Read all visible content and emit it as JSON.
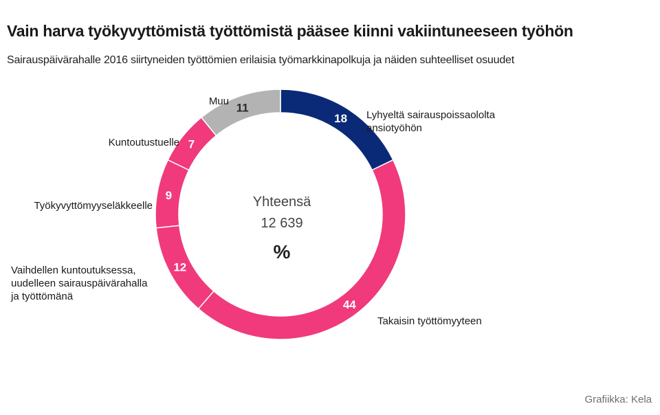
{
  "chart_data": {
    "type": "pie",
    "title": "Vain harva työkyvyttömistä työttömistä pääsee kiinni vakiintuneeseen työhön",
    "subtitle": "Sairauspäivärahalle 2016 siirtyneiden työttömien erilaisia työmarkkinapolkuja ja näiden suhteelliset osuudet",
    "center": {
      "label": "Yhteensä",
      "total": "12 639",
      "unit": "%"
    },
    "slices": [
      {
        "name": "Lyhyeltä sairauspoissaololta ansiotyöhön",
        "lines": [
          "Lyhyeltä sairauspoissaololta",
          "ansiotyöhön"
        ],
        "value": 18,
        "color": "#0a2a78"
      },
      {
        "name": "Takaisin työttömyyteen",
        "lines": [
          "Takaisin työttömyyteen"
        ],
        "value": 44,
        "color": "#f03a7c"
      },
      {
        "name": "Vaihdellen kuntoutuksessa, uudelleen sairauspäivärahalla ja työttömänä",
        "lines": [
          "Vaihdellen kuntoutuksessa,",
          "uudelleen sairauspäivärahalla",
          "ja työttömänä"
        ],
        "value": 12,
        "color": "#f03a7c"
      },
      {
        "name": "Työkyvyttömyyseläkkeelle",
        "lines": [
          "Työkyvyttömyyseläkkeelle"
        ],
        "value": 9,
        "color": "#f03a7c"
      },
      {
        "name": "Kuntoutustuelle",
        "lines": [
          "Kuntoutustuelle"
        ],
        "value": 7,
        "color": "#f03a7c"
      },
      {
        "name": "Muu",
        "lines": [
          "Muu"
        ],
        "value": 11,
        "color": "#b3b3b3"
      }
    ]
  },
  "source": "Grafiikka: Kela"
}
